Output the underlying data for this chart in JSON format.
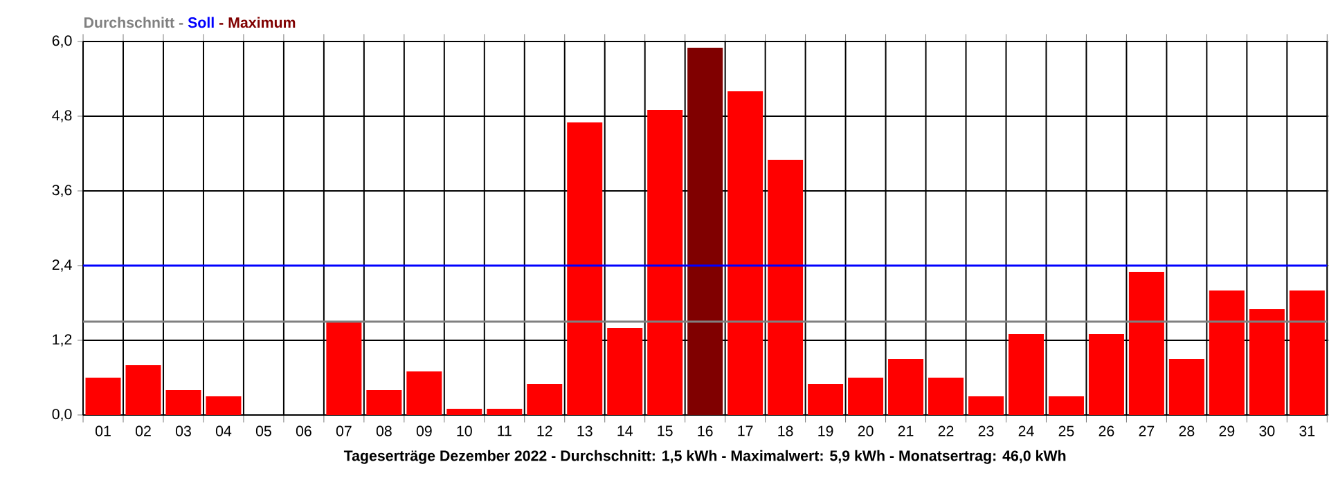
{
  "chart_data": {
    "type": "bar",
    "xlabel": "Tageserträge Dezember 2022 - Durchschnitt: 1,5 kWh - Maximalwert: 5,9 kWh - Monatsertrag: 46,0 kWh",
    "categories": [
      "01",
      "02",
      "03",
      "04",
      "05",
      "06",
      "07",
      "08",
      "09",
      "10",
      "11",
      "12",
      "13",
      "14",
      "15",
      "16",
      "17",
      "18",
      "19",
      "20",
      "21",
      "22",
      "23",
      "24",
      "25",
      "26",
      "27",
      "28",
      "29",
      "30",
      "31"
    ],
    "values": [
      0.6,
      0.8,
      0.4,
      0.3,
      0,
      0,
      1.5,
      0.4,
      0.7,
      0.1,
      0.1,
      0.5,
      4.7,
      1.4,
      4.9,
      5.9,
      5.2,
      4.1,
      0.5,
      0.6,
      0.9,
      0.6,
      0.3,
      1.3,
      0.3,
      1.3,
      2.3,
      0.9,
      2.0,
      1.7,
      2.0
    ],
    "colors": [
      "#ff0000",
      "#ff0000",
      "#ff0000",
      "#ff0000",
      "#ff0000",
      "#ff0000",
      "#ff0000",
      "#ff0000",
      "#ff0000",
      "#ff0000",
      "#ff0000",
      "#ff0000",
      "#ff0000",
      "#ff0000",
      "#ff0000",
      "#800000",
      "#ff0000",
      "#ff0000",
      "#ff0000",
      "#ff0000",
      "#ff0000",
      "#ff0000",
      "#ff0000",
      "#ff0000",
      "#ff0000",
      "#ff0000",
      "#ff0000",
      "#ff0000",
      "#ff0000",
      "#ff0000",
      "#ff0000"
    ],
    "ylim": [
      0,
      6
    ],
    "yticks": [
      {
        "value": 0,
        "label": "0,0"
      },
      {
        "value": 1.2,
        "label": "1,2"
      },
      {
        "value": 2.4,
        "label": "2,4"
      },
      {
        "value": 3.6,
        "label": "3,6"
      },
      {
        "value": 4.8,
        "label": "4,8"
      },
      {
        "value": 6,
        "label": "6,0"
      }
    ],
    "grid": true,
    "ref_lines": [
      {
        "axis": "y",
        "value": 1.5,
        "label": "Durchschnitt",
        "color": "#808080"
      },
      {
        "axis": "y",
        "value": 2.4,
        "label": "Soll",
        "color": "#0000ff"
      }
    ],
    "annotations": [
      "-",
      "-",
      "Maximum"
    ]
  }
}
